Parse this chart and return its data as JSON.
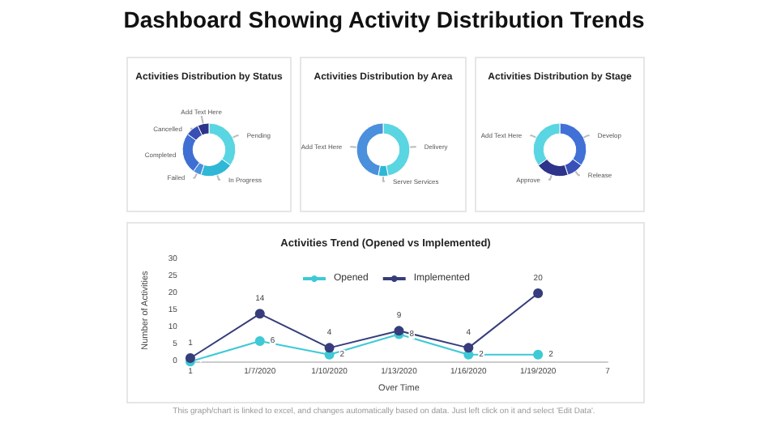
{
  "chart_data": [
    {
      "type": "other",
      "title": "Dashboard Showing Activity Distribution Trends"
    },
    {
      "type": "donut",
      "title": "Activities Distribution by Status",
      "categories": [
        "Pending",
        "In Progress",
        "Failed",
        "Completed",
        "Cancelled",
        "Add Text Here"
      ],
      "values": [
        35,
        20,
        5,
        25,
        8,
        7
      ],
      "colors": [
        "#5ad5e2",
        "#2fb8d6",
        "#4b8fdc",
        "#3f6fd3",
        "#3a4fb5",
        "#2d3489"
      ]
    },
    {
      "type": "donut",
      "title": "Activities Distribution by Area",
      "categories": [
        "Delivery",
        "Server Services",
        "Add Text Here"
      ],
      "values": [
        47,
        6,
        47
      ],
      "colors": [
        "#5ad5e2",
        "#2fb8d6",
        "#4a90dc"
      ]
    },
    {
      "type": "donut",
      "title": "Activities Distribution by Stage",
      "categories": [
        "Develop",
        "Release",
        "Approve",
        "Add Text Here"
      ],
      "values": [
        35,
        10,
        20,
        35
      ],
      "colors": [
        "#4170d6",
        "#3a50b8",
        "#2d3489",
        "#5ad5e2"
      ]
    },
    {
      "type": "line",
      "title": "Activities Trend (Opened vs Implemented)",
      "xlabel": "Over Time",
      "ylabel": "Number of Activities",
      "categories": [
        "1",
        "1/7/2020",
        "1/10/2020",
        "1/13/2020",
        "1/16/2020",
        "1/19/2020",
        "7"
      ],
      "ylim": [
        0,
        30
      ],
      "yticks": [
        0,
        5,
        10,
        15,
        20,
        25,
        30
      ],
      "grid": false,
      "legend": "top",
      "marker": "circle",
      "annotations": [
        "This graph/chart is linked to excel, and changes automatically based on data. Just left click on it and select 'Edit Data'."
      ],
      "series": [
        {
          "name": "Opened",
          "color": "#3ec9d6",
          "values": [
            0,
            6,
            2,
            8,
            2,
            2,
            null
          ],
          "value_labels": [
            null,
            "6",
            "2",
            "8",
            "2",
            "2",
            null
          ]
        },
        {
          "name": "Implemented",
          "color": "#363d7a",
          "values": [
            1,
            14,
            4,
            9,
            4,
            20,
            null
          ],
          "value_labels": [
            "1",
            "14",
            "4",
            "9",
            "4",
            "20",
            null
          ]
        }
      ]
    }
  ]
}
